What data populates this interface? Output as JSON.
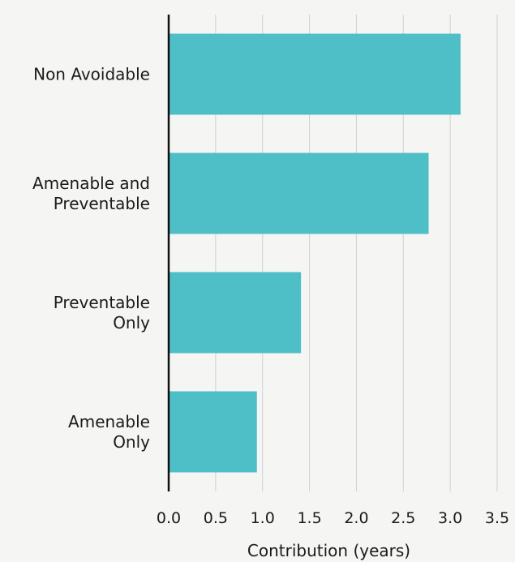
{
  "chart_data": {
    "type": "bar",
    "orientation": "horizontal",
    "categories": [
      [
        "Non Avoidable"
      ],
      [
        "Amenable and",
        "Preventable"
      ],
      [
        "Preventable",
        "Only"
      ],
      [
        "Amenable",
        "Only"
      ]
    ],
    "values": [
      3.11,
      2.77,
      1.41,
      0.94
    ],
    "xlabel": "Contribution (years)",
    "ylabel": "",
    "xlim": [
      0,
      3.5
    ],
    "xticks": [
      "0.0",
      "0.5",
      "1.0",
      "1.5",
      "2.0",
      "2.5",
      "3.0",
      "3.5"
    ],
    "grid": "vertical",
    "bar_color": "#4fbfc7",
    "grid_color": "#d0d0d0",
    "axis_color": "#111111"
  }
}
